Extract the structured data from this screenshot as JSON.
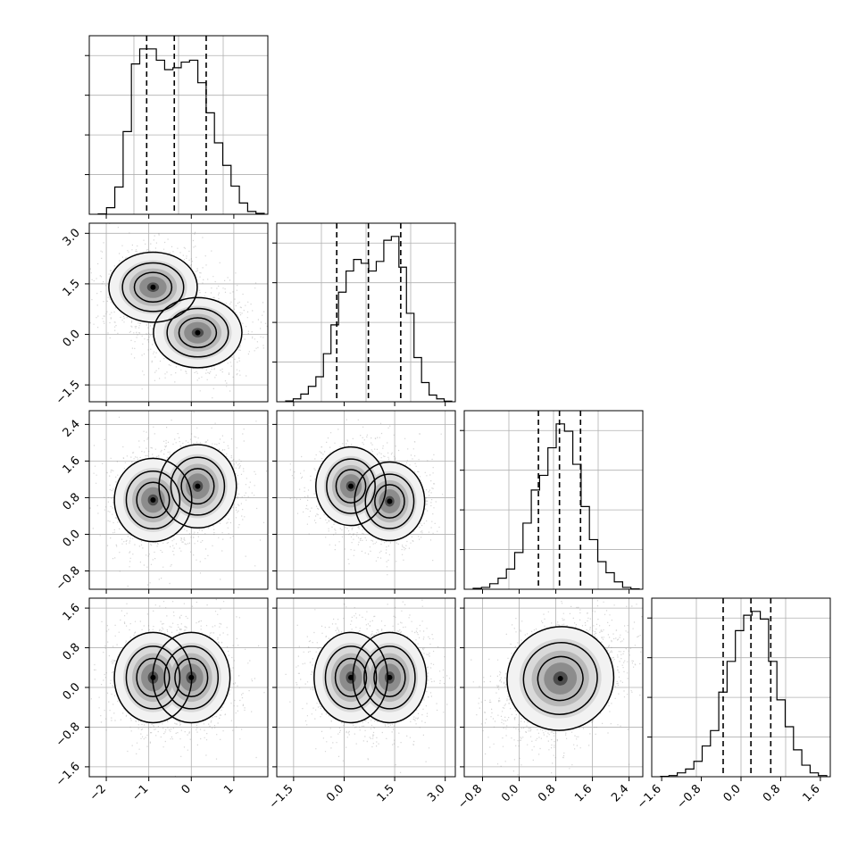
{
  "chart_data": {
    "type": "corner",
    "parameters": 4,
    "grid": true,
    "ranges": [
      [
        -2.4,
        1.8
      ],
      [
        -2.0,
        3.3
      ],
      [
        -1.2,
        2.7
      ],
      [
        -1.8,
        1.8
      ]
    ],
    "ticks": [
      {
        "values": [
          -2,
          -1,
          0,
          1
        ],
        "labels": [
          "−2",
          "−1",
          "0",
          "1"
        ]
      },
      {
        "values": [
          -1.5,
          0.0,
          1.5,
          3.0
        ],
        "labels": [
          "−1.5",
          "0.0",
          "1.5",
          "3.0"
        ]
      },
      {
        "values": [
          -0.8,
          0.0,
          0.8,
          1.6,
          2.4
        ],
        "labels": [
          "−0.8",
          "0.0",
          "0.8",
          "1.6",
          "2.4"
        ]
      },
      {
        "values": [
          -1.6,
          -0.8,
          0.0,
          0.8,
          1.6
        ],
        "labels": [
          "−1.6",
          "−0.8",
          "0.0",
          "0.8",
          "1.6"
        ]
      }
    ],
    "quantiles": [
      [
        -1.05,
        -0.4,
        0.35
      ],
      [
        -0.22,
        0.72,
        1.68
      ],
      [
        0.42,
        0.88,
        1.34
      ],
      [
        -0.36,
        0.2,
        0.6
      ]
    ],
    "marginal_histograms": [
      {
        "param": 0,
        "counts": [
          0.2,
          3.5,
          14.5,
          44,
          80,
          88,
          88,
          82,
          77,
          78,
          81,
          82,
          70,
          54,
          38,
          26,
          15,
          6,
          1.5,
          0.5
        ]
      },
      {
        "param": 1,
        "counts": [
          0.4,
          1.5,
          4,
          8,
          13,
          25,
          40,
          57,
          68,
          74,
          72,
          68,
          73,
          84,
          86,
          70,
          46,
          23,
          10,
          3.5,
          1.5,
          0.3
        ]
      },
      {
        "param": 2,
        "counts": [
          0.5,
          1,
          3,
          6,
          11,
          20,
          36,
          54,
          62,
          77,
          90,
          86,
          68,
          45,
          27,
          15,
          9,
          4,
          1,
          0.2
        ]
      },
      {
        "param": 3,
        "counts": [
          0.2,
          0.6,
          2,
          4,
          8,
          16,
          24,
          44,
          60,
          76,
          84,
          86,
          82,
          60,
          40,
          26,
          14,
          6,
          2,
          0.6
        ]
      }
    ],
    "joint_distributions": [
      {
        "x": 0,
        "y": 1,
        "components": [
          {
            "mx": -0.9,
            "my": 1.4,
            "sx": 0.4,
            "sy": 0.4,
            "rho": 0.0,
            "w": 0.5
          },
          {
            "mx": 0.15,
            "my": 0.05,
            "sx": 0.4,
            "sy": 0.4,
            "rho": 0.0,
            "w": 0.5
          }
        ]
      },
      {
        "x": 0,
        "y": 2,
        "components": [
          {
            "mx": -0.9,
            "my": 0.75,
            "sx": 0.35,
            "sy": 0.35,
            "rho": 0.0,
            "w": 0.5
          },
          {
            "mx": 0.15,
            "my": 1.05,
            "sx": 0.35,
            "sy": 0.35,
            "rho": 0.0,
            "w": 0.5
          }
        ]
      },
      {
        "x": 0,
        "y": 3,
        "components": [
          {
            "mx": -0.9,
            "my": 0.2,
            "sx": 0.35,
            "sy": 0.35,
            "rho": 0.0,
            "w": 0.5
          },
          {
            "mx": 0.0,
            "my": 0.2,
            "sx": 0.35,
            "sy": 0.35,
            "rho": 0.0,
            "w": 0.5
          }
        ]
      },
      {
        "x": 1,
        "y": 2,
        "components": [
          {
            "mx": 0.2,
            "my": 1.05,
            "sx": 0.4,
            "sy": 0.33,
            "rho": 0.0,
            "w": 0.5
          },
          {
            "mx": 1.35,
            "my": 0.72,
            "sx": 0.4,
            "sy": 0.33,
            "rho": 0.0,
            "w": 0.5
          }
        ]
      },
      {
        "x": 1,
        "y": 3,
        "components": [
          {
            "mx": 0.2,
            "my": 0.2,
            "sx": 0.42,
            "sy": 0.35,
            "rho": 0.0,
            "w": 0.5
          },
          {
            "mx": 1.35,
            "my": 0.2,
            "sx": 0.42,
            "sy": 0.35,
            "rho": 0.0,
            "w": 0.5
          }
        ]
      },
      {
        "x": 2,
        "y": 3,
        "components": [
          {
            "mx": 0.9,
            "my": 0.18,
            "sx": 0.45,
            "sy": 0.4,
            "rho": 0.35,
            "w": 1.0
          }
        ]
      }
    ]
  }
}
